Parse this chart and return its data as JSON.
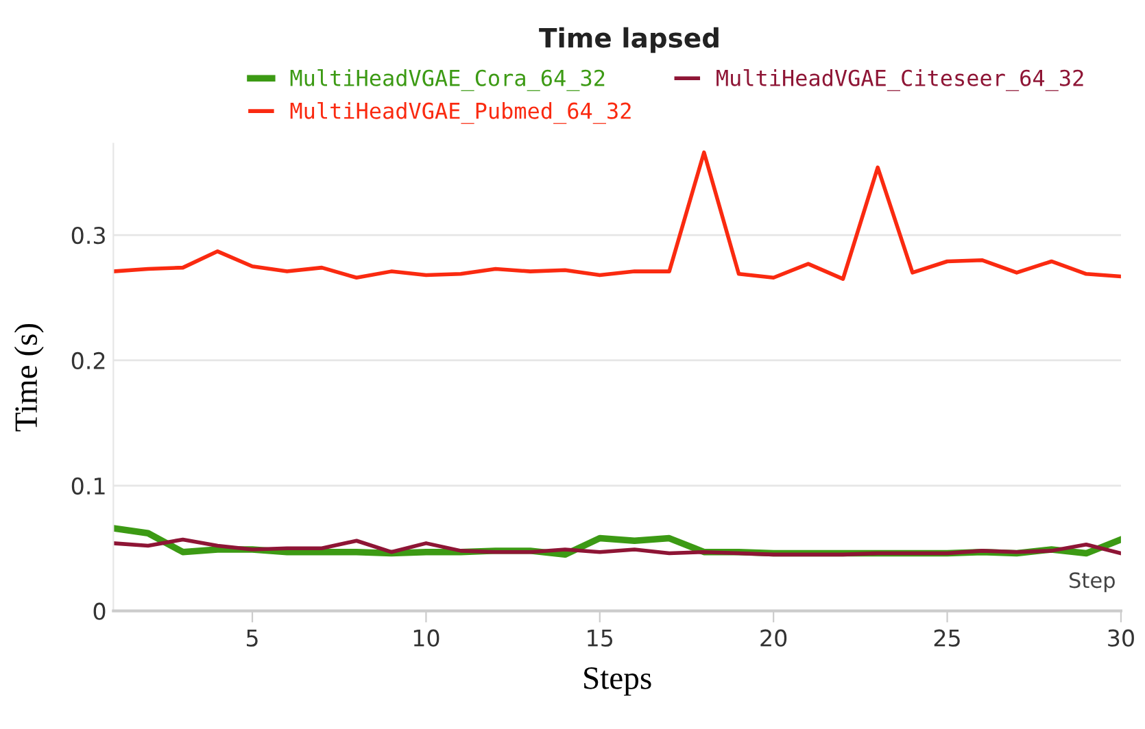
{
  "chart_data": {
    "type": "line",
    "title": "Time lapsed",
    "xlabel": "Steps",
    "ylabel": "Time (s)",
    "annotations": [
      "Step"
    ],
    "x": [
      1,
      2,
      3,
      4,
      5,
      6,
      7,
      8,
      9,
      10,
      11,
      12,
      13,
      14,
      15,
      16,
      17,
      18,
      19,
      20,
      21,
      22,
      23,
      24,
      25,
      26,
      27,
      28,
      29,
      30
    ],
    "series": [
      {
        "name": "MultiHeadVGAE_Cora_64_32",
        "color": "#3c9a14",
        "values": [
          0.066,
          0.062,
          0.047,
          0.049,
          0.049,
          0.047,
          0.047,
          0.047,
          0.046,
          0.047,
          0.047,
          0.048,
          0.048,
          0.045,
          0.058,
          0.056,
          0.058,
          0.047,
          0.047,
          0.046,
          0.046,
          0.046,
          0.046,
          0.046,
          0.046,
          0.047,
          0.046,
          0.049,
          0.046,
          0.057
        ]
      },
      {
        "name": "MultiHeadVGAE_Citeseer_64_32",
        "color": "#8e1535",
        "values": [
          0.054,
          0.052,
          0.057,
          0.052,
          0.049,
          0.05,
          0.05,
          0.056,
          0.047,
          0.054,
          0.048,
          0.047,
          0.047,
          0.049,
          0.047,
          0.049,
          0.046,
          0.047,
          0.046,
          0.045,
          0.045,
          0.045,
          0.046,
          0.046,
          0.046,
          0.048,
          0.047,
          0.048,
          0.053,
          0.046
        ]
      },
      {
        "name": "MultiHeadVGAE_Pubmed_64_32",
        "color": "#fa2a10",
        "values": [
          0.271,
          0.273,
          0.274,
          0.287,
          0.275,
          0.271,
          0.274,
          0.266,
          0.271,
          0.268,
          0.269,
          0.273,
          0.271,
          0.272,
          0.268,
          0.271,
          0.271,
          0.366,
          0.269,
          0.266,
          0.277,
          0.265,
          0.354,
          0.27,
          0.279,
          0.28,
          0.27,
          0.279,
          0.269,
          0.267
        ]
      }
    ],
    "xlim": [
      1,
      30
    ],
    "xticks": [
      5,
      10,
      15,
      20,
      25,
      30
    ],
    "ylim": [
      0,
      0.373
    ],
    "yticks": [
      0,
      0.1,
      0.2,
      0.3
    ],
    "grid": "y",
    "legend": "top"
  }
}
